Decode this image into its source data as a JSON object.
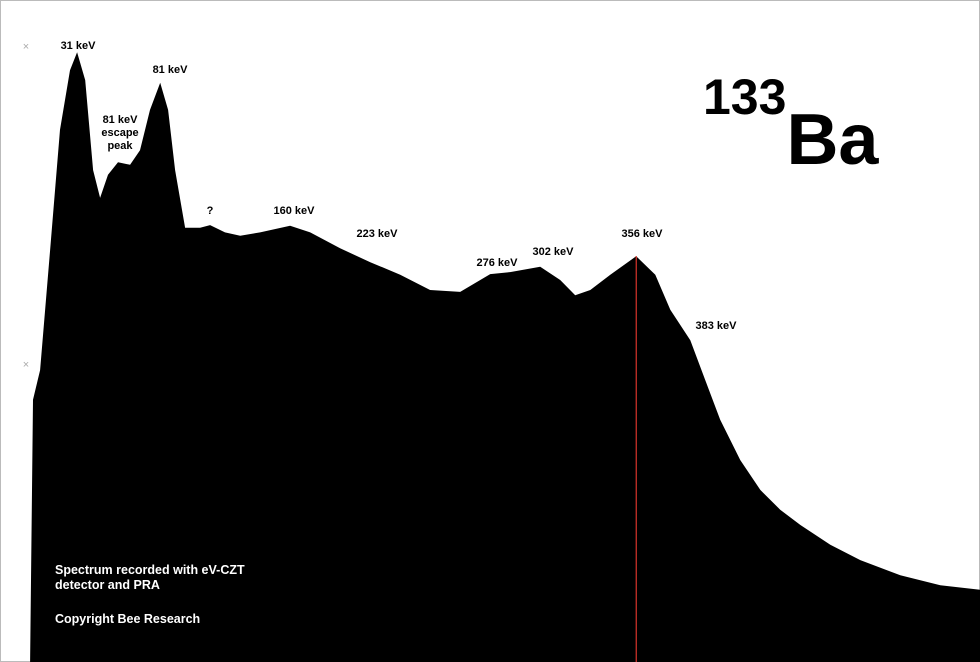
{
  "chart_data": {
    "type": "area",
    "title": {
      "mass": "133",
      "element": "Ba"
    },
    "x": [
      3.7,
      5.4,
      9.5,
      15.3,
      21.1,
      26.9,
      31,
      35.7,
      40.3,
      44.4,
      49.0,
      54.8,
      61.8,
      67.6,
      73.4,
      79.3,
      83.9,
      88.0,
      93.8,
      102.5,
      108.3,
      117.0,
      125.8,
      137.4,
      154.8,
      166.5,
      183.9,
      201.4,
      218.8,
      236.2,
      253.7,
      271.1,
      282.7,
      300.2,
      311.8,
      320.5,
      329.3,
      340.9,
      356.0,
      367.1,
      375.8,
      387.4,
      396.1,
      404.8,
      416.5,
      428.1,
      439.7,
      451.4,
      468.8,
      486.2,
      509.5,
      532.7,
      555.8
    ],
    "values": [
      0,
      39.6,
      44.1,
      62.2,
      80.4,
      89.4,
      92.1,
      87.9,
      74.3,
      70.1,
      73.6,
      75.5,
      75.1,
      77.3,
      83.4,
      87.5,
      83.4,
      74.3,
      65.6,
      65.6,
      66.0,
      64.9,
      64.4,
      64.9,
      65.9,
      64.9,
      62.5,
      60.4,
      58.5,
      56.2,
      55.9,
      58.6,
      58.9,
      59.7,
      57.7,
      55.4,
      56.2,
      58.5,
      61.3,
      58.5,
      53.2,
      48.6,
      42.6,
      36.6,
      30.5,
      26.0,
      23.0,
      20.7,
      17.7,
      15.4,
      13.1,
      11.6,
      10.9
    ],
    "color": "#000000",
    "xlim": [
      -13.8,
      555.8
    ],
    "ylim": [
      0,
      100
    ],
    "marker": 356,
    "marker_color": "#d9342b",
    "annotations": [
      [
        "31 keV"
      ],
      [
        "81 keV"
      ],
      [
        "81 keV",
        "escape",
        "peak"
      ],
      [
        "?"
      ],
      [
        "160 keV"
      ],
      [
        "223 keV"
      ],
      [
        "276 keV"
      ],
      [
        "302 keV"
      ],
      [
        "356 keV"
      ],
      [
        "383 keV"
      ]
    ],
    "notes": [
      [
        "Spectrum recorded with eV-CZT",
        "detector and PRA"
      ],
      [
        "Copyright Bee Research"
      ]
    ]
  }
}
